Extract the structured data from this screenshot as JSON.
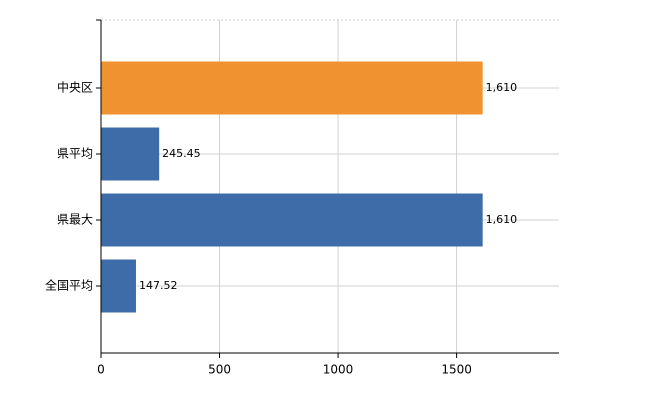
{
  "chart_data": {
    "type": "hbar",
    "categories": [
      "中央区",
      "県平均",
      "県最大",
      "全国平均"
    ],
    "values": [
      1610,
      245.45,
      1610,
      147.52
    ],
    "value_labels": [
      "1,610",
      "245.45",
      "1,610",
      "147.52"
    ],
    "colors": [
      "#f0922f",
      "#3d6ca9",
      "#3d6ca9",
      "#3d6ca9"
    ],
    "xlim": [
      0,
      1932
    ],
    "xticks": [
      0,
      500,
      1000,
      1500
    ],
    "grid": true
  }
}
